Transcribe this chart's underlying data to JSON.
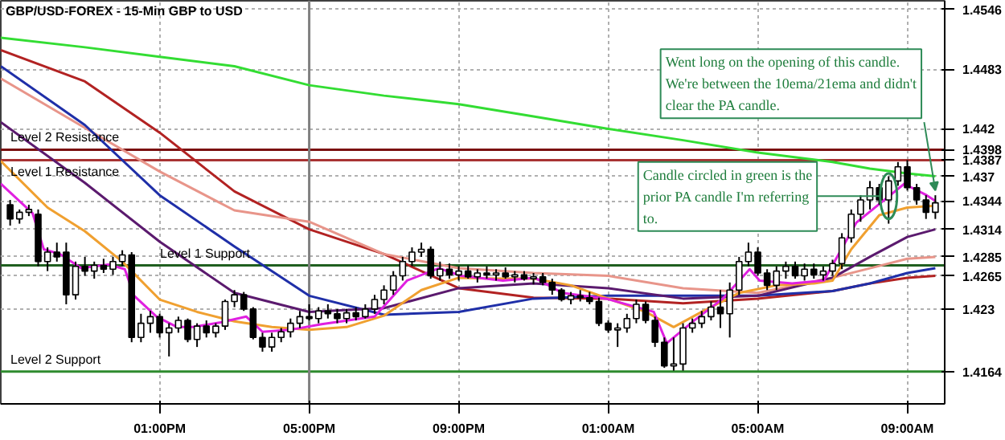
{
  "chart_data": {
    "type": "candlestick",
    "title": "GBP/USD-FOREX - 15-Min GBP to USD",
    "x": [
      "--01-01T09:00",
      "--01-01T09:15",
      "--01-01T09:30",
      "--01-01T09:45",
      "--01-01T10:00",
      "--01-01T10:15",
      "--01-01T10:30",
      "--01-01T10:45",
      "--01-01T11:00",
      "--01-01T11:15",
      "--01-01T11:30",
      "--01-01T11:45",
      "--01-01T12:00",
      "--01-01T12:15",
      "--01-01T12:30",
      "--01-01T12:45",
      "--01-01T13:00",
      "--01-01T13:15",
      "--01-01T13:30",
      "--01-01T13:45",
      "--01-01T14:00",
      "--01-01T14:15",
      "--01-01T14:30",
      "--01-01T14:45",
      "--01-01T15:00",
      "--01-01T15:15",
      "--01-01T15:30",
      "--01-01T15:45",
      "--01-01T16:00",
      "--01-01T16:15",
      "--01-01T16:30",
      "--01-01T16:45",
      "--01-01T17:00",
      "--01-01T17:15",
      "--01-01T17:30",
      "--01-01T17:45",
      "--01-01T18:00",
      "--01-01T18:15",
      "--01-01T18:30",
      "--01-01T18:45",
      "--01-01T19:00",
      "--01-01T19:15",
      "--01-01T19:30",
      "--01-01T19:45",
      "--01-01T20:00",
      "--01-01T20:15",
      "--01-01T20:30",
      "--01-01T20:45",
      "--01-01T21:00",
      "--01-01T21:15",
      "--01-01T21:30",
      "--01-01T21:45",
      "--01-01T22:00",
      "--01-01T22:15",
      "--01-01T22:30",
      "--01-01T22:45",
      "--01-01T23:00",
      "--01-01T23:15",
      "--01-01T23:30",
      "--01-01T23:45",
      "--01-02T00:00",
      "--01-02T00:15",
      "--01-02T00:30",
      "--01-02T00:45",
      "--01-02T01:00",
      "--01-02T01:15",
      "--01-02T01:30",
      "--01-02T01:45",
      "--01-02T02:00",
      "--01-02T02:15",
      "--01-02T02:30",
      "--01-02T02:45",
      "--01-02T03:00",
      "--01-02T03:15",
      "--01-02T03:30",
      "--01-02T03:45",
      "--01-02T04:00",
      "--01-02T04:15",
      "--01-02T04:30",
      "--01-02T04:45",
      "--01-02T05:00",
      "--01-02T05:15",
      "--01-02T05:30",
      "--01-02T05:45",
      "--01-02T06:00",
      "--01-02T06:15",
      "--01-02T06:30",
      "--01-02T06:45",
      "--01-02T07:00",
      "--01-02T07:15",
      "--01-02T07:30",
      "--01-02T07:45",
      "--01-02T08:00",
      "--01-02T08:15",
      "--01-02T08:30",
      "--01-02T08:45",
      "--01-02T09:00",
      "--01-02T09:15",
      "--01-02T09:30",
      "--01-02T09:45"
    ],
    "ohlc": [
      [
        1.434,
        1.4345,
        1.4318,
        1.4325
      ],
      [
        1.4325,
        1.4335,
        1.432,
        1.4332
      ],
      [
        1.4332,
        1.434,
        1.4328,
        1.4335
      ],
      [
        1.433,
        1.4335,
        1.4275,
        1.428
      ],
      [
        1.428,
        1.4295,
        1.427,
        1.429
      ],
      [
        1.429,
        1.43,
        1.428,
        1.4285
      ],
      [
        1.429,
        1.43,
        1.4235,
        1.4245
      ],
      [
        1.4245,
        1.428,
        1.424,
        1.4275
      ],
      [
        1.4275,
        1.4285,
        1.4265,
        1.427
      ],
      [
        1.427,
        1.428,
        1.4262,
        1.4276
      ],
      [
        1.4276,
        1.4283,
        1.4268,
        1.4272
      ],
      [
        1.4272,
        1.4285,
        1.4266,
        1.428
      ],
      [
        1.428,
        1.4292,
        1.4275,
        1.4287
      ],
      [
        1.4287,
        1.429,
        1.4195,
        1.42
      ],
      [
        1.42,
        1.4225,
        1.4195,
        1.4215
      ],
      [
        1.4215,
        1.4228,
        1.4205,
        1.4222
      ],
      [
        1.4222,
        1.4225,
        1.42,
        1.4205
      ],
      [
        1.4205,
        1.4215,
        1.418,
        1.421
      ],
      [
        1.421,
        1.4222,
        1.4205,
        1.4218
      ],
      [
        1.4218,
        1.422,
        1.4195,
        1.4198
      ],
      [
        1.4198,
        1.4215,
        1.419,
        1.4212
      ],
      [
        1.4212,
        1.4218,
        1.42,
        1.4205
      ],
      [
        1.4205,
        1.4215,
        1.42,
        1.4212
      ],
      [
        1.4212,
        1.424,
        1.4208,
        1.4238
      ],
      [
        1.4238,
        1.425,
        1.4232,
        1.4245
      ],
      [
        1.4245,
        1.4248,
        1.4228,
        1.423
      ],
      [
        1.423,
        1.4232,
        1.4198,
        1.42
      ],
      [
        1.42,
        1.4205,
        1.4185,
        1.419
      ],
      [
        1.419,
        1.4205,
        1.4185,
        1.42
      ],
      [
        1.42,
        1.421,
        1.4195,
        1.4206
      ],
      [
        1.4206,
        1.422,
        1.42,
        1.4215
      ],
      [
        1.4215,
        1.4228,
        1.421,
        1.4222
      ],
      [
        1.4222,
        1.4235,
        1.4218,
        1.422
      ],
      [
        1.422,
        1.4232,
        1.4215,
        1.4228
      ],
      [
        1.4228,
        1.4235,
        1.422,
        1.4225
      ],
      [
        1.4225,
        1.423,
        1.4215,
        1.422
      ],
      [
        1.422,
        1.423,
        1.4215,
        1.4226
      ],
      [
        1.4226,
        1.4232,
        1.4218,
        1.4222
      ],
      [
        1.4222,
        1.4235,
        1.422,
        1.423
      ],
      [
        1.423,
        1.4245,
        1.4225,
        1.424
      ],
      [
        1.424,
        1.4255,
        1.4235,
        1.425
      ],
      [
        1.425,
        1.427,
        1.4245,
        1.4265
      ],
      [
        1.4265,
        1.4285,
        1.426,
        1.428
      ],
      [
        1.428,
        1.4295,
        1.4275,
        1.429
      ],
      [
        1.429,
        1.43,
        1.4285,
        1.4293
      ],
      [
        1.4293,
        1.4296,
        1.4262,
        1.4265
      ],
      [
        1.4265,
        1.428,
        1.426,
        1.4272
      ],
      [
        1.4272,
        1.4278,
        1.4262,
        1.4266
      ],
      [
        1.4266,
        1.4275,
        1.426,
        1.427
      ],
      [
        1.427,
        1.4276,
        1.4262,
        1.4264
      ],
      [
        1.4264,
        1.4272,
        1.4258,
        1.4268
      ],
      [
        1.4268,
        1.4275,
        1.4262,
        1.4266
      ],
      [
        1.4266,
        1.4272,
        1.426,
        1.4268
      ],
      [
        1.4268,
        1.4274,
        1.4262,
        1.4264
      ],
      [
        1.4264,
        1.427,
        1.4258,
        1.4266
      ],
      [
        1.4266,
        1.427,
        1.426,
        1.4262
      ],
      [
        1.4262,
        1.4268,
        1.4256,
        1.4264
      ],
      [
        1.4264,
        1.4268,
        1.4255,
        1.4258
      ],
      [
        1.4258,
        1.4262,
        1.4245,
        1.425
      ],
      [
        1.425,
        1.4252,
        1.4238,
        1.424
      ],
      [
        1.424,
        1.4248,
        1.4235,
        1.4244
      ],
      [
        1.4244,
        1.425,
        1.4238,
        1.4242
      ],
      [
        1.4242,
        1.4248,
        1.4235,
        1.4238
      ],
      [
        1.4238,
        1.4242,
        1.4212,
        1.4215
      ],
      [
        1.4215,
        1.4218,
        1.4205,
        1.4208
      ],
      [
        1.4208,
        1.4215,
        1.419,
        1.421
      ],
      [
        1.421,
        1.4225,
        1.4205,
        1.422
      ],
      [
        1.422,
        1.424,
        1.4215,
        1.4235
      ],
      [
        1.4235,
        1.4238,
        1.4215,
        1.4218
      ],
      [
        1.4218,
        1.4222,
        1.419,
        1.4195
      ],
      [
        1.4195,
        1.42,
        1.4168,
        1.417
      ],
      [
        1.417,
        1.42,
        1.4165,
        1.4172
      ],
      [
        1.4172,
        1.4215,
        1.4165,
        1.421
      ],
      [
        1.421,
        1.422,
        1.4205,
        1.4215
      ],
      [
        1.4215,
        1.4228,
        1.421,
        1.4222
      ],
      [
        1.4222,
        1.4238,
        1.4218,
        1.4232
      ],
      [
        1.4232,
        1.425,
        1.421,
        1.4225
      ],
      [
        1.4225,
        1.4258,
        1.42,
        1.425
      ],
      [
        1.425,
        1.4285,
        1.4245,
        1.428
      ],
      [
        1.428,
        1.43,
        1.4275,
        1.429
      ],
      [
        1.429,
        1.4295,
        1.4265,
        1.4268
      ],
      [
        1.4268,
        1.4272,
        1.425,
        1.4255
      ],
      [
        1.4255,
        1.4275,
        1.425,
        1.427
      ],
      [
        1.427,
        1.428,
        1.4262,
        1.4275
      ],
      [
        1.4275,
        1.428,
        1.4262,
        1.4265
      ],
      [
        1.4265,
        1.4278,
        1.426,
        1.4272
      ],
      [
        1.4272,
        1.4278,
        1.4262,
        1.4266
      ],
      [
        1.4266,
        1.4275,
        1.426,
        1.427
      ],
      [
        1.427,
        1.4282,
        1.4265,
        1.4278
      ],
      [
        1.4278,
        1.431,
        1.4272,
        1.4305
      ],
      [
        1.4305,
        1.4335,
        1.43,
        1.433
      ],
      [
        1.433,
        1.435,
        1.4322,
        1.4345
      ],
      [
        1.4345,
        1.4365,
        1.4335,
        1.4358
      ],
      [
        1.4358,
        1.4362,
        1.434,
        1.4345
      ],
      [
        1.4345,
        1.437,
        1.432,
        1.4365
      ],
      [
        1.4365,
        1.4385,
        1.436,
        1.438
      ],
      [
        1.438,
        1.4387,
        1.4355,
        1.4358
      ],
      [
        1.4358,
        1.4362,
        1.434,
        1.4345
      ],
      [
        1.4345,
        1.435,
        1.4325,
        1.4332
      ],
      [
        1.4332,
        1.435,
        1.4325,
        1.4342
      ]
    ],
    "series": [
      {
        "type": "line",
        "color": "#33dd33",
        "x": [
          "--01-01T08:45",
          "--01-01T11:00",
          "--01-01T13:00",
          "--01-01T15:00",
          "--01-01T17:00",
          "--01-01T19:00",
          "--01-01T21:00",
          "--01-01T23:00",
          "--01-02T01:00",
          "--01-02T03:00",
          "--01-02T05:00",
          "--01-02T07:00",
          "--01-02T08:00",
          "--01-02T09:00",
          "--01-02T09:45"
        ],
        "values": [
          1.4516,
          1.4506,
          1.4496,
          1.4486,
          1.4466,
          1.4455,
          1.4446,
          1.4433,
          1.442,
          1.4408,
          1.4395,
          1.4385,
          1.4378,
          1.4373,
          1.437
        ]
      },
      {
        "type": "line",
        "color": "#b22222",
        "x": [
          "--01-01T08:45",
          "--01-01T11:00",
          "--01-01T13:00",
          "--01-01T15:00",
          "--01-01T17:00",
          "--01-01T19:00",
          "--01-01T21:00",
          "--01-01T23:00",
          "--01-02T01:00",
          "--01-02T03:00",
          "--01-02T05:00",
          "--01-02T07:00",
          "--01-02T08:00",
          "--01-02T09:00",
          "--01-02T09:45"
        ],
        "values": [
          1.4503,
          1.447,
          1.4416,
          1.4354,
          1.4314,
          1.4288,
          1.4252,
          1.4242,
          1.4241,
          1.4236,
          1.4241,
          1.4249,
          1.4257,
          1.4263,
          1.4265
        ]
      },
      {
        "type": "line",
        "color": "#e8958a",
        "x": [
          "--01-01T08:45",
          "--01-01T11:00",
          "--01-01T13:00",
          "--01-01T15:00",
          "--01-01T17:00",
          "--01-01T19:00",
          "--01-01T21:00",
          "--01-01T23:00",
          "--01-02T01:00",
          "--01-02T03:00",
          "--01-02T05:00",
          "--01-02T07:00",
          "--01-02T08:00",
          "--01-02T09:00",
          "--01-02T09:45"
        ],
        "values": [
          1.4473,
          1.4421,
          1.4375,
          1.4334,
          1.4322,
          1.4288,
          1.4273,
          1.4268,
          1.4265,
          1.4252,
          1.4247,
          1.4263,
          1.4273,
          1.4283,
          1.4285
        ]
      },
      {
        "type": "line",
        "color": "#1f2fa8",
        "x": [
          "--01-01T08:45",
          "--01-01T11:00",
          "--01-01T13:00",
          "--01-01T15:00",
          "--01-01T17:00",
          "--01-01T19:00",
          "--01-01T21:00",
          "--01-01T23:00",
          "--01-02T01:00",
          "--01-02T03:00",
          "--01-02T05:00",
          "--01-02T07:00",
          "--01-02T08:00",
          "--01-02T09:00",
          "--01-02T09:45"
        ],
        "values": [
          1.4486,
          1.4424,
          1.435,
          1.4296,
          1.4244,
          1.4224,
          1.4227,
          1.4241,
          1.4244,
          1.4244,
          1.4244,
          1.4249,
          1.4257,
          1.4268,
          1.4273
        ]
      },
      {
        "type": "line",
        "color": "#5b1a6e",
        "x": [
          "--01-01T08:45",
          "--01-01T11:00",
          "--01-01T13:00",
          "--01-01T15:00",
          "--01-01T17:00",
          "--01-01T19:00",
          "--01-01T21:00",
          "--01-01T23:00",
          "--01-02T01:00",
          "--01-02T03:00",
          "--01-02T05:00",
          "--01-02T07:00",
          "--01-02T08:00",
          "--01-02T09:00",
          "--01-02T09:45"
        ],
        "values": [
          1.4427,
          1.4363,
          1.4301,
          1.4247,
          1.4227,
          1.4231,
          1.4252,
          1.4257,
          1.4252,
          1.4241,
          1.4244,
          1.4263,
          1.4285,
          1.4306,
          1.4314
        ]
      },
      {
        "type": "line",
        "color": "#f0a030",
        "x": [
          "--01-01T08:45",
          "--01-01T10:00",
          "--01-01T11:00",
          "--01-01T12:00",
          "--01-01T13:00",
          "--01-01T14:00",
          "--01-01T15:00",
          "--01-01T16:00",
          "--01-01T17:00",
          "--01-01T18:00",
          "--01-01T19:00",
          "--01-01T20:00",
          "--01-01T21:00",
          "--01-01T22:00",
          "--01-01T23:00",
          "--01-02T00:00",
          "--01-02T01:00",
          "--01-02T02:00",
          "--01-02T02:45",
          "--01-02T03:30",
          "--01-02T04:30",
          "--01-02T05:30",
          "--01-02T06:30",
          "--01-02T07:00",
          "--01-02T07:30",
          "--01-02T08:15",
          "--01-02T09:00",
          "--01-02T09:45"
        ],
        "values": [
          1.4386,
          1.4337,
          1.4312,
          1.428,
          1.424,
          1.4227,
          1.4217,
          1.4211,
          1.4208,
          1.4211,
          1.4223,
          1.425,
          1.4263,
          1.4262,
          1.4262,
          1.4255,
          1.4241,
          1.4227,
          1.4211,
          1.4227,
          1.4247,
          1.4255,
          1.4257,
          1.426,
          1.4293,
          1.4329,
          1.4337,
          1.4339
        ]
      },
      {
        "type": "line",
        "color": "#e020e0",
        "x": [
          "--01-01T08:45",
          "--01-01T09:36",
          "--01-01T09:54",
          "--01-01T10:20",
          "--01-01T10:54",
          "--01-01T11:38",
          "--01-01T12:04",
          "--01-01T12:19",
          "--01-01T12:55",
          "--01-01T13:28",
          "--01-01T13:54",
          "--01-01T14:38",
          "--01-01T15:19",
          "--01-01T15:45",
          "--01-01T16:29",
          "--01-01T17:20",
          "--01-01T18:45",
          "--01-01T19:37",
          "--01-01T20:28",
          "--01-01T21:04",
          "--01-01T22:11",
          "--01-01T23:02",
          "--01-01T23:46",
          "--01-02T00:56",
          "--01-02T02:13",
          "--01-02T02:34",
          "--01-02T03:20",
          "--01-02T04:04",
          "--01-02T04:47",
          "--01-02T05:03",
          "--01-02T05:55",
          "--01-02T06:46",
          "--01-02T07:38",
          "--01-02T08:55",
          "--01-02T09:31",
          "--01-02T09:45"
        ],
        "values": [
          1.4362,
          1.4331,
          1.4293,
          1.4288,
          1.4273,
          1.4277,
          1.4272,
          1.4244,
          1.4222,
          1.4211,
          1.4211,
          1.4216,
          1.4222,
          1.4206,
          1.4208,
          1.4214,
          1.4222,
          1.426,
          1.4273,
          1.4265,
          1.426,
          1.4263,
          1.4247,
          1.4241,
          1.4227,
          1.4194,
          1.4219,
          1.4241,
          1.4272,
          1.426,
          1.4257,
          1.426,
          1.4321,
          1.4362,
          1.435,
          1.4344
        ]
      }
    ],
    "xlim": [
      "--01-01T08:45",
      "--01-02T10:00"
    ],
    "ylim": [
      1.413,
      1.4555
    ],
    "xticks": [
      {
        "value": "--01-01T13:00",
        "label": "01:00PM"
      },
      {
        "value": "--01-01T17:00",
        "label": "05:00PM"
      },
      {
        "value": "--01-01T21:00",
        "label": "09:00PM"
      },
      {
        "value": "--01-02T01:00",
        "label": "01:00AM"
      },
      {
        "value": "--01-02T05:00",
        "label": "05:00AM"
      },
      {
        "value": "--01-02T09:00",
        "label": "09:00AM"
      }
    ],
    "yticks": [
      1.4546,
      1.4483,
      1.442,
      1.4398,
      1.4387,
      1.437,
      1.4344,
      1.4314,
      1.4285,
      1.4265,
      1.423,
      1.4164
    ],
    "ref_lines": [
      {
        "axis": "y",
        "value": 1.4398,
        "label": "Level 2 Resistance",
        "color": "#7b1010"
      },
      {
        "axis": "y",
        "value": 1.4387,
        "label": "Level 1 Resistance",
        "color": "#a83232"
      },
      {
        "axis": "y",
        "value": 1.4276,
        "label": "Level 1 Support",
        "color": "#1f5f1f"
      },
      {
        "axis": "y",
        "value": 1.4164,
        "label": "Level 2 Support",
        "color": "#2e8b2e"
      },
      {
        "axis": "x",
        "value": "--01-01T17:00",
        "color": "#808080"
      }
    ],
    "annotations": [
      {
        "text": "Went long on the opening of this candle. We're between the 10ema/21ema and didn't clear the PA candle.",
        "x": "--01-02T09:45",
        "y": 1.435
      },
      {
        "text": "Candle circled in green is the prior PA candle I'm referring to.",
        "x": "--01-02T08:30",
        "y": 1.4349
      }
    ],
    "grid": true
  }
}
